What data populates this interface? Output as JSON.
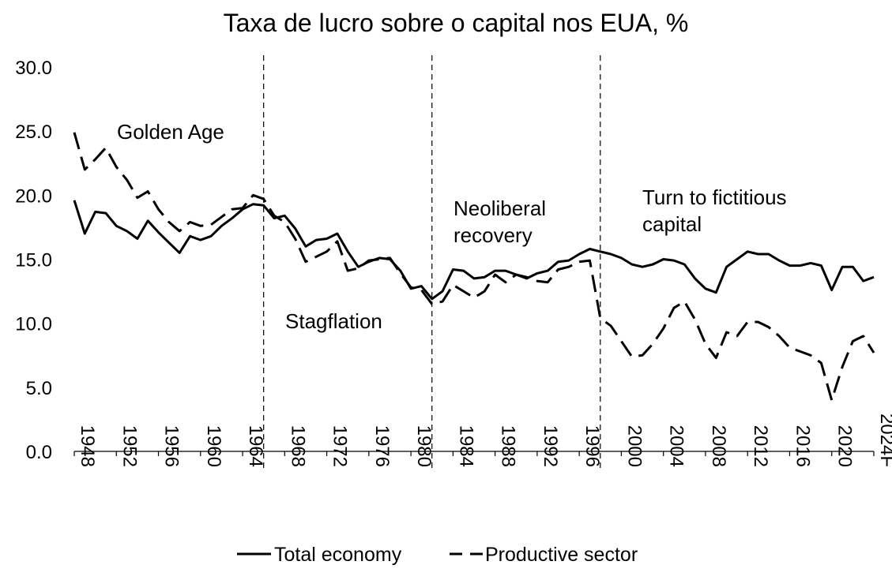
{
  "chart_data": {
    "type": "line",
    "title": "Taxa de lucro sobre o capital nos EUA, %",
    "xlabel": "",
    "ylabel": "",
    "ylim": [
      0,
      30
    ],
    "yticks": [
      "0.0",
      "5.0",
      "10.0",
      "15.0",
      "20.0",
      "25.0",
      "30.0"
    ],
    "xticks": [
      "1948",
      "1952",
      "1956",
      "1960",
      "1964",
      "1968",
      "1972",
      "1976",
      "1980",
      "1984",
      "1988",
      "1992",
      "1996",
      "2000",
      "2004",
      "2008",
      "2012",
      "2016",
      "2020",
      "2024F"
    ],
    "grid": false,
    "legend_position": "bottom",
    "x": [
      1948,
      1949,
      1950,
      1951,
      1952,
      1953,
      1954,
      1955,
      1956,
      1957,
      1958,
      1959,
      1960,
      1961,
      1962,
      1963,
      1964,
      1965,
      1966,
      1967,
      1968,
      1969,
      1970,
      1971,
      1972,
      1973,
      1974,
      1975,
      1976,
      1977,
      1978,
      1979,
      1980,
      1981,
      1982,
      1983,
      1984,
      1985,
      1986,
      1987,
      1988,
      1989,
      1990,
      1991,
      1992,
      1993,
      1994,
      1995,
      1996,
      1997,
      1998,
      1999,
      2000,
      2001,
      2002,
      2003,
      2004,
      2005,
      2006,
      2007,
      2008,
      2009,
      2010,
      2011,
      2012,
      2013,
      2014,
      2015,
      2016,
      2017,
      2018,
      2019,
      2020,
      2021,
      2022,
      2023,
      "2024F"
    ],
    "series": [
      {
        "name": "Total economy",
        "style": "solid",
        "values": [
          19.6,
          17.0,
          18.7,
          18.6,
          17.6,
          17.2,
          16.6,
          18.0,
          17.1,
          16.3,
          15.5,
          16.8,
          16.5,
          16.8,
          17.6,
          18.2,
          18.9,
          19.3,
          19.2,
          18.2,
          18.4,
          17.4,
          16.0,
          16.5,
          16.6,
          17.0,
          15.6,
          14.4,
          14.8,
          15.1,
          15.0,
          14.1,
          12.7,
          12.9,
          11.9,
          12.5,
          14.2,
          14.1,
          13.5,
          13.6,
          14.1,
          14.1,
          13.8,
          13.5,
          13.9,
          14.1,
          14.8,
          14.9,
          15.4,
          15.8,
          15.6,
          15.4,
          15.1,
          14.6,
          14.4,
          14.6,
          15.0,
          14.9,
          14.6,
          13.5,
          12.7,
          12.4,
          14.4,
          15.0,
          15.6,
          15.4,
          15.4,
          14.9,
          14.5,
          14.5,
          14.7,
          14.5,
          12.6,
          14.4,
          14.4,
          13.3,
          13.6
        ]
      },
      {
        "name": "Productive sector",
        "style": "dashed",
        "values": [
          24.9,
          22.0,
          22.8,
          23.7,
          22.2,
          21.2,
          19.8,
          20.3,
          18.9,
          17.9,
          17.2,
          17.9,
          17.6,
          17.7,
          18.3,
          18.9,
          19.0,
          20.0,
          19.7,
          18.4,
          17.9,
          16.6,
          14.8,
          15.2,
          15.6,
          16.4,
          14.1,
          14.3,
          14.9,
          15.0,
          15.1,
          13.9,
          12.8,
          12.6,
          11.5,
          11.7,
          13.0,
          12.5,
          12.0,
          12.5,
          13.8,
          13.2,
          13.8,
          13.6,
          13.3,
          13.2,
          14.2,
          14.4,
          14.8,
          14.9,
          10.4,
          9.8,
          8.6,
          7.4,
          7.5,
          8.4,
          9.6,
          11.2,
          11.7,
          10.3,
          8.4,
          7.3,
          9.3,
          9.0,
          10.1,
          10.1,
          9.7,
          9.0,
          8.1,
          7.8,
          7.5,
          6.9,
          4.0,
          6.6,
          8.6,
          9.0,
          7.7
        ]
      }
    ],
    "period_dividers": [
      1966,
      1982,
      1998
    ],
    "annotations": [
      {
        "text": "Golden Age",
        "lines": [
          "Golden Age"
        ]
      },
      {
        "text": "Stagflation",
        "lines": [
          "Stagflation"
        ]
      },
      {
        "text": "Neoliberal recovery",
        "lines": [
          "Neoliberal",
          "recovery"
        ]
      },
      {
        "text": "Turn to fictitious capital",
        "lines": [
          "Turn to fictitious",
          "capital"
        ]
      }
    ],
    "legend": [
      "Total economy",
      "Productive sector"
    ]
  }
}
